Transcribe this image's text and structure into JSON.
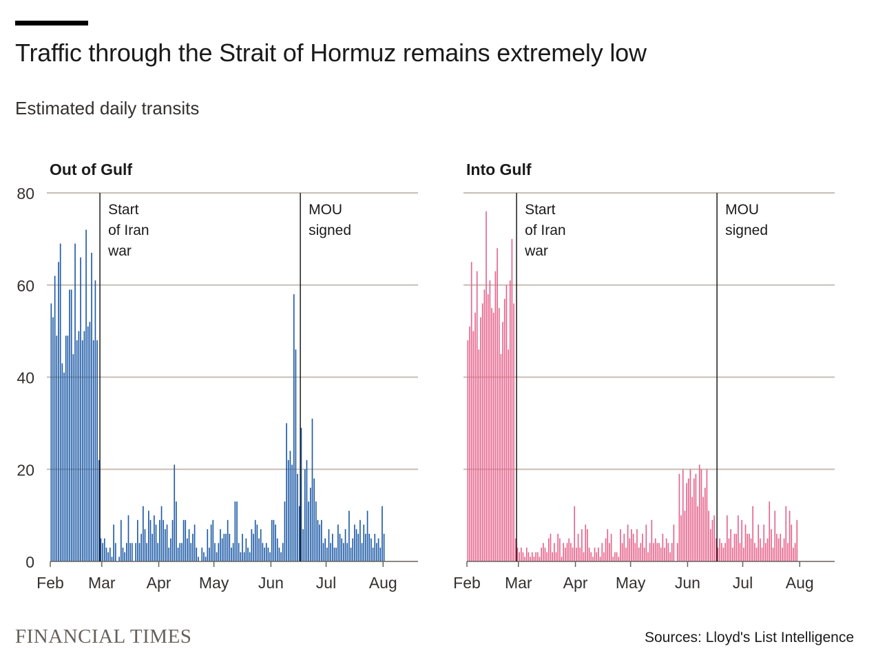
{
  "header": {
    "title": "Traffic through the Strait of Hormuz remains extremely low",
    "subtitle": "Estimated daily transits"
  },
  "footer": {
    "brand": "FINANCIAL TIMES",
    "source": "Sources: Lloyd's List Intelligence"
  },
  "colors": {
    "out_of_gulf": "#1d5aa6",
    "into_gulf": "#e5638c",
    "grid": "#c7bdb4",
    "annotation": "#1a1a1a",
    "brand": "#66605c"
  },
  "chart_data": [
    {
      "type": "bar",
      "title": "Out of Gulf",
      "ylim": [
        0,
        80
      ],
      "y_ticks": [
        "80",
        "60",
        "40",
        "20",
        "0"
      ],
      "y_tick_values": [
        80,
        60,
        40,
        20,
        0
      ],
      "x_tick_labels": [
        "Feb",
        "Mar",
        "Apr",
        "May",
        "Jun",
        "Jul",
        "Aug"
      ],
      "x_tick_days": [
        0,
        28,
        59,
        89,
        120,
        150,
        181
      ],
      "grid": true,
      "annotations": [
        {
          "day": 27,
          "lines": [
            "Start",
            "of Iran",
            "war"
          ]
        },
        {
          "day": 136,
          "lines": [
            "MOU",
            "signed"
          ]
        }
      ],
      "series": [
        {
          "values": [
            56,
            53,
            62,
            49,
            65,
            69,
            43,
            41,
            49,
            49,
            59,
            59,
            45,
            69,
            48,
            50,
            66,
            48,
            50,
            72,
            51,
            52,
            67,
            48,
            61,
            48,
            22,
            5,
            4,
            5,
            3,
            2,
            3,
            1,
            8,
            4,
            0,
            1,
            9,
            3,
            2,
            4,
            10,
            4,
            4,
            0,
            4,
            9,
            4,
            6,
            12,
            7,
            4,
            11,
            9,
            6,
            10,
            8,
            4,
            9,
            12,
            9,
            7,
            8,
            3,
            5,
            9,
            21,
            13,
            3,
            4,
            4,
            9,
            9,
            5,
            7,
            4,
            6,
            8,
            3,
            1,
            0,
            3,
            2,
            1,
            7,
            3,
            8,
            9,
            4,
            2,
            4,
            7,
            5,
            6,
            6,
            9,
            6,
            3,
            4,
            13,
            13,
            4,
            2,
            6,
            2,
            5,
            3,
            2,
            7,
            6,
            9,
            8,
            5,
            7,
            4,
            3,
            4,
            3,
            2,
            9,
            9,
            8,
            5,
            3,
            2,
            4,
            13,
            30,
            22,
            24,
            21,
            58,
            46,
            19,
            12,
            29,
            7,
            20,
            22,
            13,
            16,
            31,
            18,
            13,
            9,
            8,
            9,
            4,
            5,
            3,
            7,
            4,
            6,
            3,
            3,
            8,
            6,
            5,
            4,
            7,
            4,
            11,
            3,
            5,
            8,
            7,
            6,
            9,
            4,
            8,
            6,
            11,
            6,
            5,
            3,
            6,
            4,
            5,
            3,
            12,
            6
          ]
        }
      ]
    },
    {
      "type": "bar",
      "title": "Into Gulf",
      "ylim": [
        0,
        80
      ],
      "y_ticks": [
        "80",
        "60",
        "40",
        "20",
        "0"
      ],
      "y_tick_values": [
        80,
        60,
        40,
        20,
        0
      ],
      "x_tick_labels": [
        "Feb",
        "Mar",
        "Apr",
        "May",
        "Jun",
        "Jul",
        "Aug"
      ],
      "x_tick_days": [
        0,
        28,
        59,
        89,
        120,
        150,
        181
      ],
      "grid": true,
      "annotations": [
        {
          "day": 27,
          "lines": [
            "Start",
            "of Iran",
            "war"
          ]
        },
        {
          "day": 136,
          "lines": [
            "MOU",
            "signed"
          ]
        }
      ],
      "series": [
        {
          "values": [
            48,
            51,
            65,
            50,
            54,
            63,
            46,
            53,
            56,
            59,
            76,
            58,
            61,
            55,
            54,
            63,
            68,
            55,
            45,
            52,
            57,
            60,
            46,
            61,
            70,
            56,
            5,
            3,
            2,
            3,
            2,
            1,
            3,
            2,
            1,
            2,
            1,
            2,
            2,
            1,
            3,
            4,
            3,
            2,
            5,
            6,
            2,
            4,
            2,
            6,
            5,
            1,
            4,
            3,
            4,
            5,
            4,
            3,
            12,
            3,
            6,
            3,
            7,
            2,
            8,
            7,
            3,
            2,
            1,
            3,
            2,
            3,
            1,
            4,
            2,
            5,
            7,
            4,
            6,
            1,
            2,
            2,
            1,
            7,
            4,
            6,
            3,
            8,
            5,
            7,
            6,
            4,
            7,
            3,
            4,
            6,
            3,
            8,
            2,
            4,
            9,
            4,
            5,
            4,
            4,
            3,
            6,
            3,
            5,
            4,
            2,
            4,
            8,
            0,
            4,
            19,
            10,
            20,
            11,
            17,
            18,
            20,
            14,
            18,
            19,
            12,
            21,
            20,
            14,
            16,
            20,
            11,
            7,
            9,
            10,
            5,
            3,
            5,
            4,
            3,
            4,
            10,
            5,
            7,
            3,
            6,
            6,
            10,
            4,
            9,
            3,
            8,
            6,
            6,
            5,
            12,
            4,
            3,
            8,
            5,
            3,
            8,
            4,
            5,
            13,
            7,
            3,
            11,
            6,
            5,
            6,
            3,
            5,
            12,
            4,
            11,
            8,
            3,
            4,
            9
          ]
        }
      ]
    }
  ]
}
